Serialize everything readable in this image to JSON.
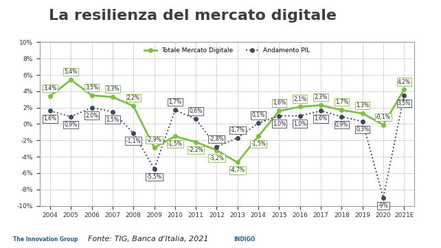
{
  "chart_data": {
    "type": "line",
    "title": "La resilienza del mercato digitale",
    "source": "Fonte: TIG, Banca d'Italia, 2021",
    "logos": [
      "The Innovation Group",
      "INDIGO"
    ],
    "categories": [
      "2004",
      "2005",
      "2006",
      "2007",
      "2008",
      "2009",
      "2010",
      "2011",
      "2012",
      "2013",
      "2014",
      "2015",
      "2016",
      "2017",
      "2018",
      "2019",
      "2020",
      "2021E"
    ],
    "series": [
      {
        "name": "Totale Mercato Digitale",
        "color": "#7dbf45",
        "marker": "o",
        "line_style": "solid",
        "values": [
          3.4,
          5.4,
          3.5,
          3.3,
          2.2,
          -2.9,
          -1.5,
          -2.2,
          -3.2,
          -4.7,
          -1.5,
          1.6,
          2.1,
          2.3,
          1.7,
          1.3,
          -0.1,
          4.2
        ],
        "value_labels": [
          "3,4%",
          "5,4%",
          "3,5%",
          "3,3%",
          "2,2%",
          "-2,9%",
          "-1,5%",
          "-2,2%",
          "-3,2%",
          "-4,7%",
          "-1,5%",
          "1,6%",
          "2,1%",
          "2,3%",
          "1,7%",
          "1,3%",
          "-0,1%",
          "4,2%"
        ]
      },
      {
        "name": "Andamento PIL",
        "color": "#3e4a5e",
        "marker": "o",
        "line_style": "dotted",
        "values": [
          1.6,
          0.9,
          2.0,
          1.5,
          -1.1,
          -5.5,
          1.7,
          0.6,
          -2.8,
          -1.7,
          0.1,
          1.0,
          1.0,
          1.6,
          0.9,
          0.3,
          -9,
          3.5
        ],
        "value_labels": [
          "1,6%",
          "0,9%",
          "2,0%",
          "1,5%",
          "-1,1%",
          "-5,5%",
          "1,7%",
          "0,6%",
          "-2,8%",
          "-1,7%",
          "0,1%",
          "1,0%",
          "1,0%",
          "1,6%",
          "0,9%",
          "0,3%",
          "-9%",
          "3,5%"
        ]
      }
    ],
    "ylim": [
      -10,
      10
    ],
    "yticks": [
      {
        "value": -10,
        "label": "-10%"
      },
      {
        "value": -8,
        "label": "-8%"
      },
      {
        "value": -6,
        "label": "-6%"
      },
      {
        "value": -4,
        "label": "-4%"
      },
      {
        "value": -2,
        "label": "-2%"
      },
      {
        "value": 0,
        "label": "0%"
      },
      {
        "value": 2,
        "label": "2%"
      },
      {
        "value": 4,
        "label": "4%"
      },
      {
        "value": 6,
        "label": "6%"
      },
      {
        "value": 8,
        "label": "8%"
      },
      {
        "value": 10,
        "label": "10%"
      }
    ],
    "grid": true,
    "legend": "upper center",
    "data_labels": true
  }
}
